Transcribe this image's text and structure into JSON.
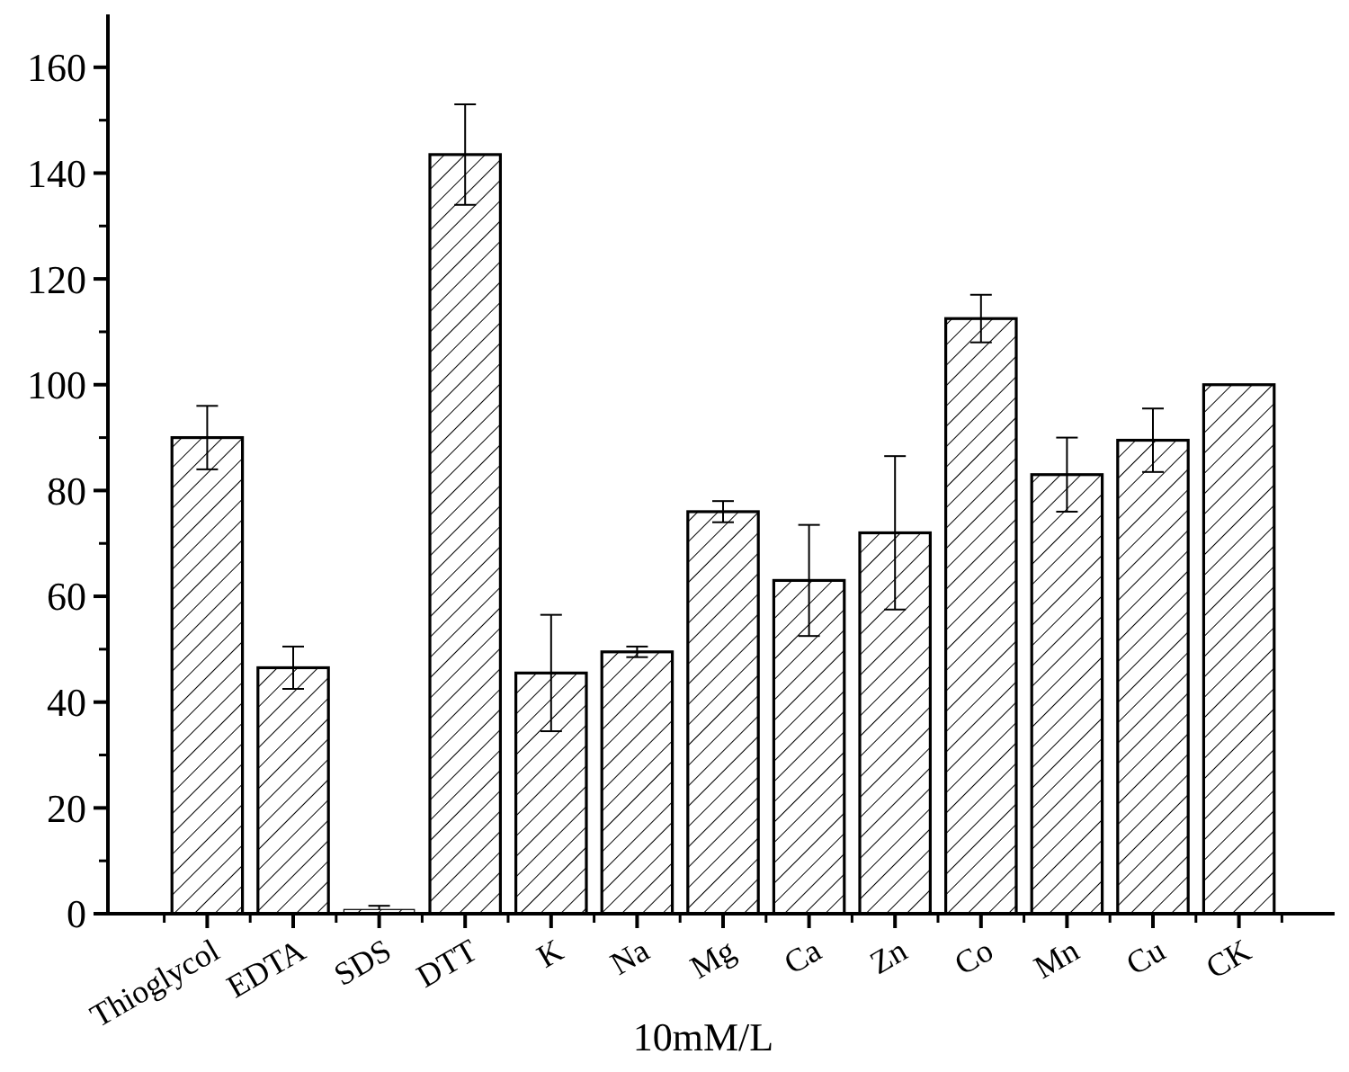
{
  "chart_data": {
    "type": "bar",
    "xlabel": "10mM/L",
    "categories": [
      "Thioglycol",
      "EDTA",
      "SDS",
      "DTT",
      "K",
      "Na",
      "Mg",
      "Ca",
      "Zn",
      "Co",
      "Mn",
      "Cu",
      "CK"
    ],
    "values": [
      90,
      46.5,
      0.8,
      143.5,
      45.5,
      49.5,
      76,
      63,
      72,
      112.5,
      83,
      89.5,
      100
    ],
    "errors": [
      6,
      4,
      [
        0.8,
        1.5
      ],
      9.5,
      11,
      1,
      2,
      10.5,
      14.5,
      4.5,
      7,
      6,
      null
    ],
    "color": "#000000",
    "ylim": [
      0,
      170
    ],
    "yticks": [
      0,
      20,
      40,
      60,
      80,
      100,
      120,
      140,
      160
    ],
    "grid": false
  }
}
